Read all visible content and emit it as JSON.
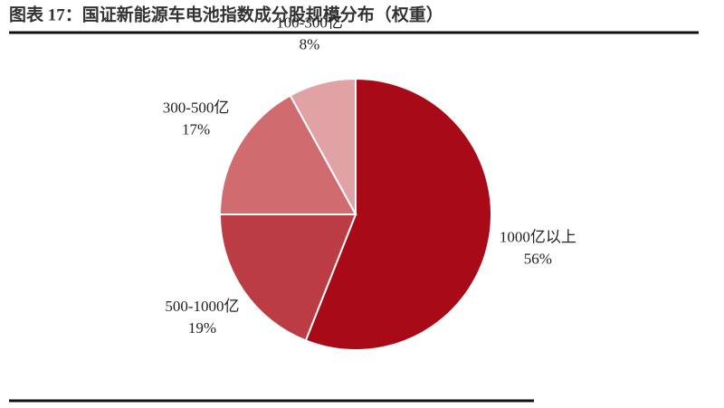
{
  "chart_data": {
    "type": "pie",
    "title": "图表 17：国证新能源车电池指数成分股规模分布（权重）",
    "categories": [
      "1000亿以上",
      "500-1000亿",
      "300-500亿",
      "100-300亿"
    ],
    "values": [
      56,
      19,
      17,
      8
    ],
    "value_labels": [
      "56%",
      "19%",
      "17%",
      "8%"
    ],
    "colors": [
      "#a80a17",
      "#bb3c42",
      "#d06c6f",
      "#e0a2a5"
    ]
  }
}
